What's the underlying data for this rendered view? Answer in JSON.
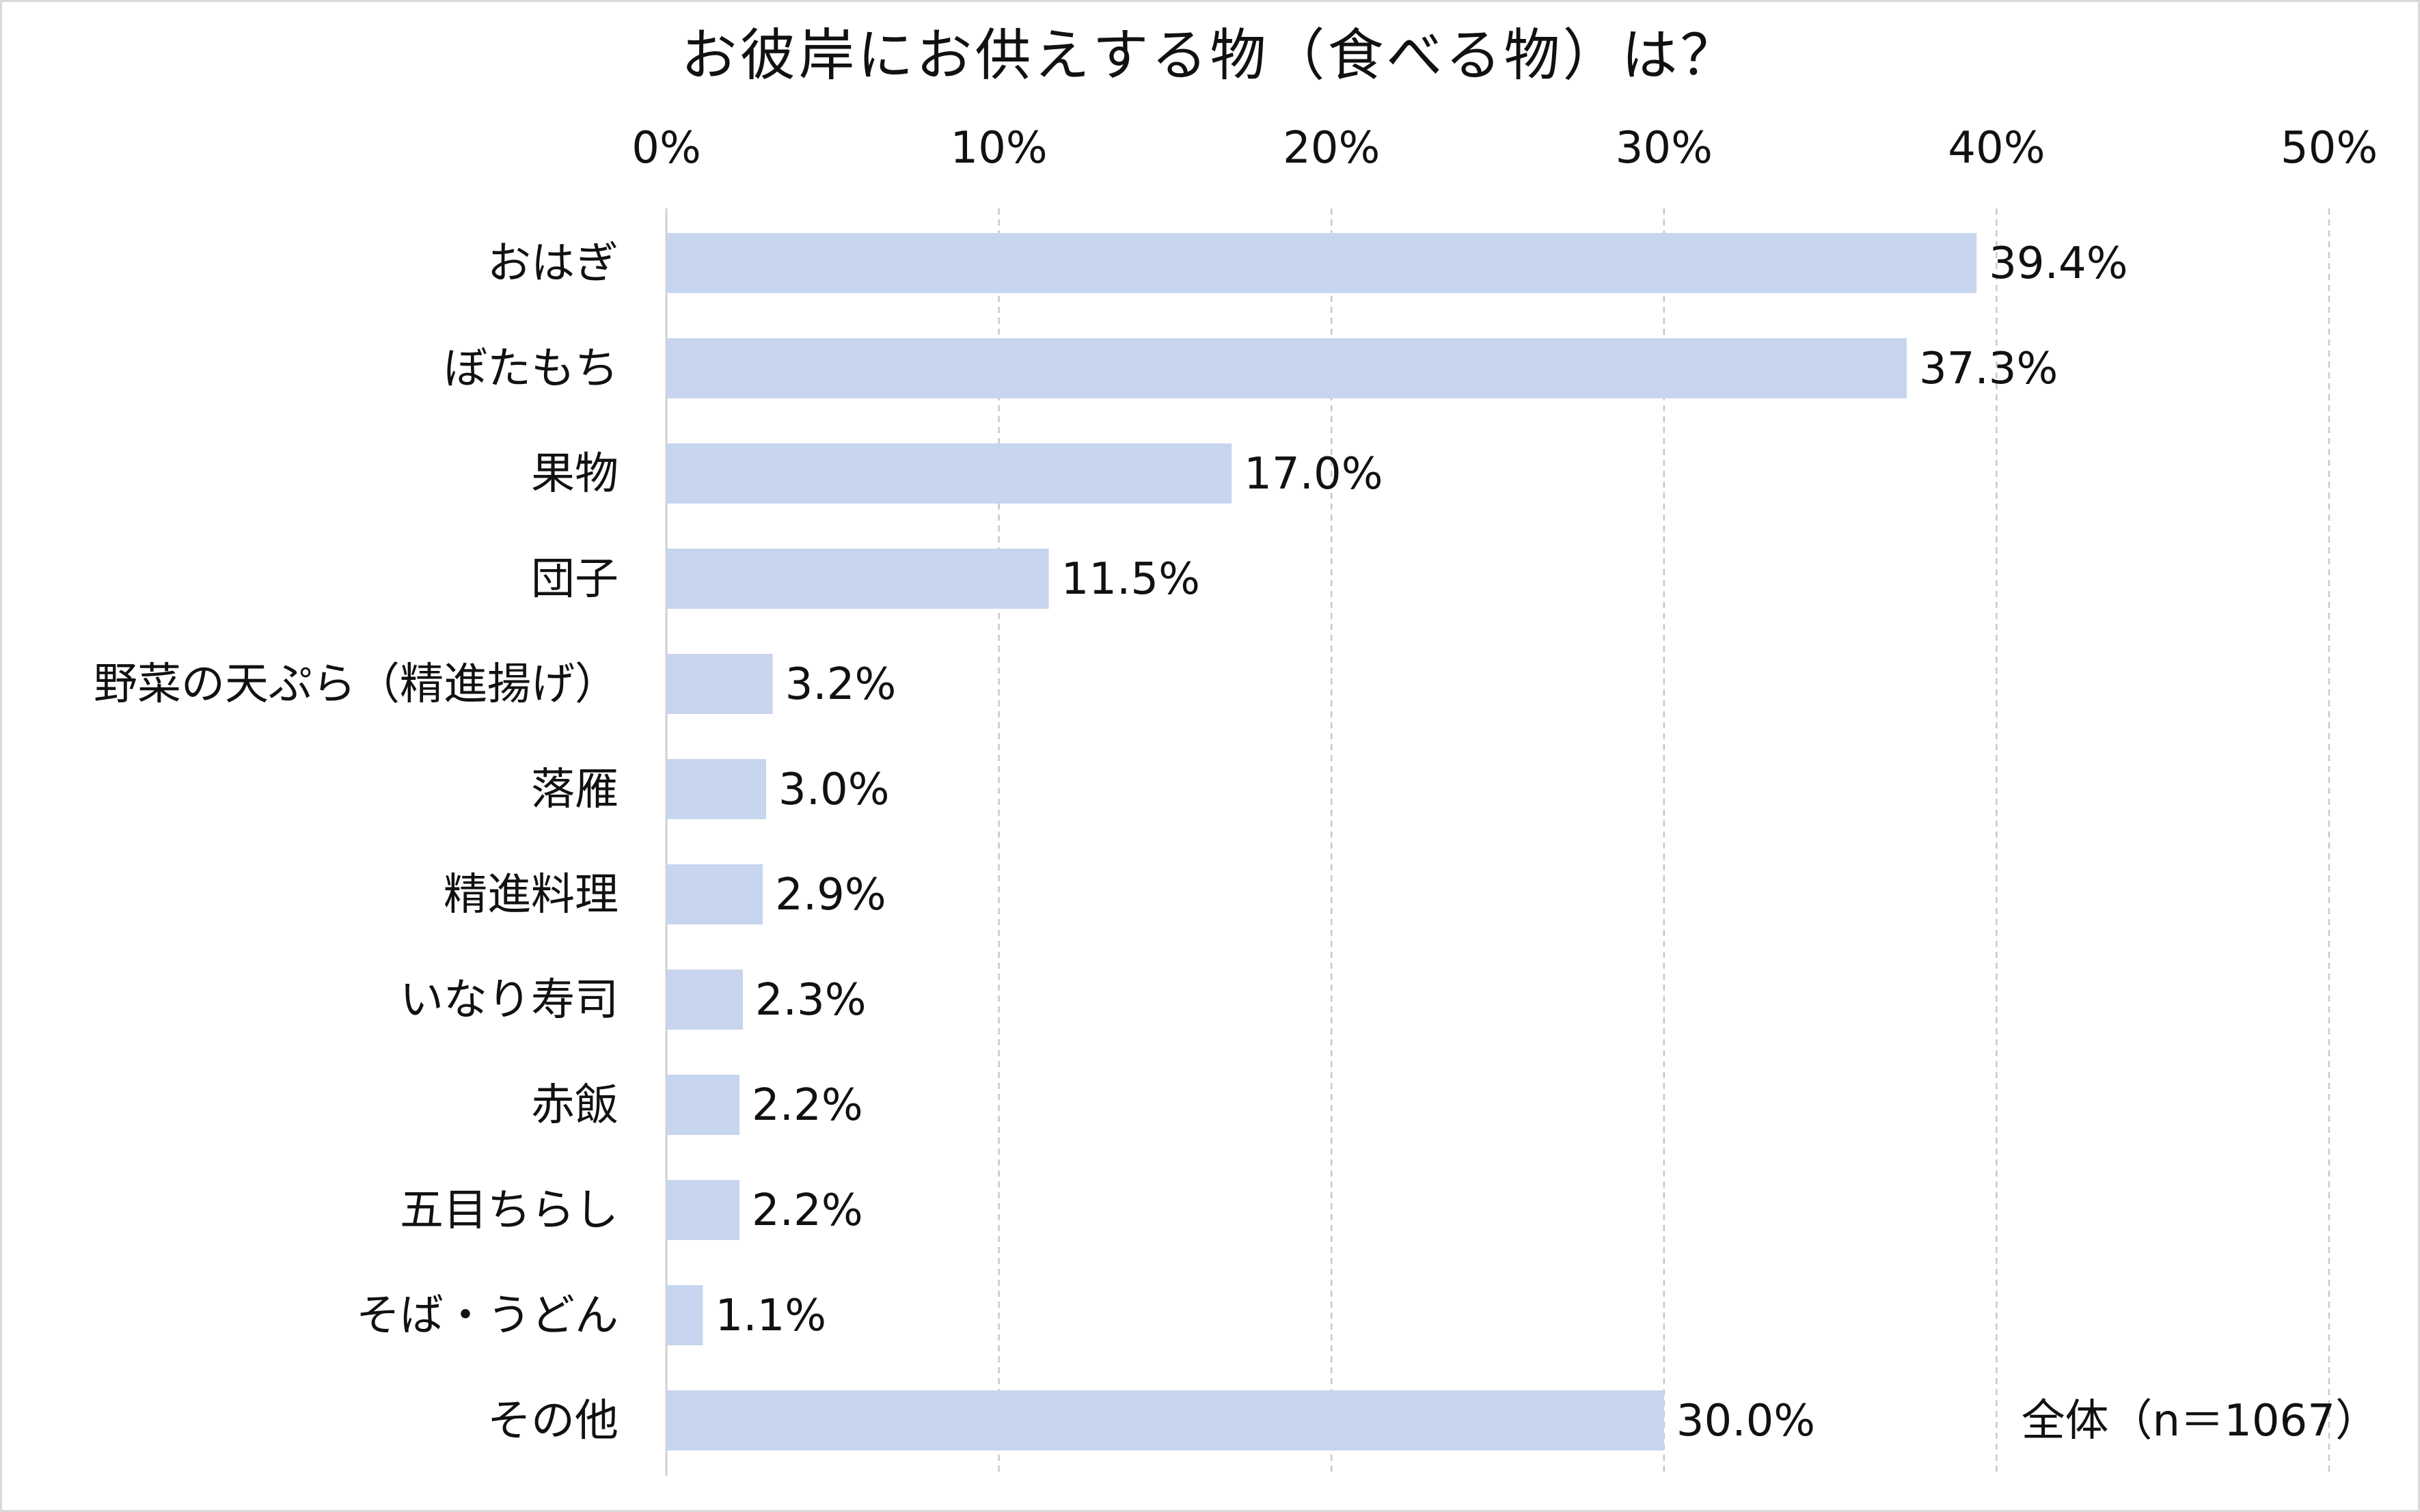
{
  "chart_data": {
    "type": "bar",
    "orientation": "horizontal",
    "title": "お彼岸にお供えする物（食べる物）は？",
    "categories": [
      "おはぎ",
      "ぼたもち",
      "果物",
      "団子",
      "野菜の天ぷら（精進揚げ）",
      "落雁",
      "精進料理",
      "いなり寿司",
      "赤飯",
      "五目ちらし",
      "そば・うどん",
      "その他"
    ],
    "values": [
      39.4,
      37.3,
      17.0,
      11.5,
      3.2,
      3.0,
      2.9,
      2.3,
      2.2,
      2.2,
      1.1,
      30.0
    ],
    "value_labels": [
      "39.4%",
      "37.3%",
      "17.0%",
      "11.5%",
      "3.2%",
      "3.0%",
      "2.9%",
      "2.3%",
      "2.2%",
      "2.2%",
      "1.1%",
      "30.0%"
    ],
    "x_ticks": [
      "0%",
      "10%",
      "20%",
      "30%",
      "40%",
      "50%"
    ],
    "xlim": [
      0,
      50
    ],
    "xlabel": "",
    "ylabel": "",
    "grid": "vertical-dashed",
    "bar_color": "#c7d5ee",
    "note": "全体（n＝1067）"
  }
}
